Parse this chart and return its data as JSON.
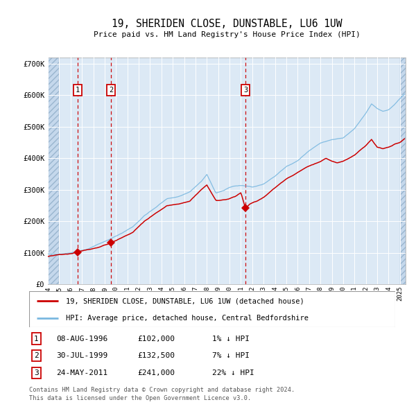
{
  "title": "19, SHERIDEN CLOSE, DUNSTABLE, LU6 1UW",
  "subtitle": "Price paid vs. HM Land Registry's House Price Index (HPI)",
  "legend_line1": "19, SHERIDEN CLOSE, DUNSTABLE, LU6 1UW (detached house)",
  "legend_line2": "HPI: Average price, detached house, Central Bedfordshire",
  "footer1": "Contains HM Land Registry data © Crown copyright and database right 2024.",
  "footer2": "This data is licensed under the Open Government Licence v3.0.",
  "transactions": [
    {
      "num": 1,
      "date": "08-AUG-1996",
      "date_val": 1996.6,
      "price": 102000,
      "label": "1% ↓ HPI"
    },
    {
      "num": 2,
      "date": "30-JUL-1999",
      "date_val": 1999.58,
      "price": 132500,
      "label": "7% ↓ HPI"
    },
    {
      "num": 3,
      "date": "24-MAY-2011",
      "date_val": 2011.4,
      "price": 241000,
      "label": "22% ↓ HPI"
    }
  ],
  "ylim": [
    0,
    720000
  ],
  "xlim_start": 1994.0,
  "xlim_end": 2025.5,
  "bg_color": "#dce9f5",
  "grid_color": "#ffffff",
  "hpi_line_color": "#7ab8e0",
  "price_line_color": "#cc0000",
  "dashed_line_color": "#cc0000",
  "marker_color": "#cc0000",
  "box_color": "#cc0000",
  "yticks": [
    0,
    100000,
    200000,
    300000,
    400000,
    500000,
    600000,
    700000
  ],
  "ytick_labels": [
    "£0",
    "£100K",
    "£200K",
    "£300K",
    "£400K",
    "£500K",
    "£600K",
    "£700K"
  ],
  "hpi_anchors": [
    [
      1994.0,
      95000
    ],
    [
      1995.0,
      97000
    ],
    [
      1996.0,
      100000
    ],
    [
      1997.5,
      112000
    ],
    [
      1998.5,
      128000
    ],
    [
      1999.5,
      143000
    ],
    [
      2000.5,
      162000
    ],
    [
      2001.5,
      183000
    ],
    [
      2002.5,
      218000
    ],
    [
      2003.5,
      243000
    ],
    [
      2004.5,
      272000
    ],
    [
      2005.5,
      278000
    ],
    [
      2006.5,
      293000
    ],
    [
      2007.5,
      325000
    ],
    [
      2008.0,
      348000
    ],
    [
      2008.8,
      288000
    ],
    [
      2009.5,
      298000
    ],
    [
      2010.0,
      308000
    ],
    [
      2010.5,
      312000
    ],
    [
      2011.0,
      312000
    ],
    [
      2012.0,
      308000
    ],
    [
      2013.0,
      318000
    ],
    [
      2014.0,
      343000
    ],
    [
      2015.0,
      373000
    ],
    [
      2016.0,
      393000
    ],
    [
      2017.0,
      423000
    ],
    [
      2018.0,
      448000
    ],
    [
      2019.0,
      458000
    ],
    [
      2020.0,
      463000
    ],
    [
      2021.0,
      493000
    ],
    [
      2022.0,
      543000
    ],
    [
      2022.5,
      573000
    ],
    [
      2023.0,
      558000
    ],
    [
      2023.5,
      548000
    ],
    [
      2024.0,
      553000
    ],
    [
      2024.5,
      568000
    ],
    [
      2025.0,
      588000
    ],
    [
      2025.4,
      603000
    ]
  ],
  "pp_anchors": [
    [
      1994.0,
      90000
    ],
    [
      1996.0,
      97000
    ],
    [
      1996.6,
      102000
    ],
    [
      1997.5,
      108000
    ],
    [
      1998.5,
      118000
    ],
    [
      1999.0,
      125000
    ],
    [
      1999.58,
      132500
    ],
    [
      2000.5,
      148000
    ],
    [
      2001.5,
      165000
    ],
    [
      2002.5,
      200000
    ],
    [
      2003.5,
      225000
    ],
    [
      2004.5,
      250000
    ],
    [
      2005.5,
      255000
    ],
    [
      2006.5,
      265000
    ],
    [
      2007.5,
      300000
    ],
    [
      2008.0,
      315000
    ],
    [
      2008.8,
      265000
    ],
    [
      2009.5,
      268000
    ],
    [
      2010.0,
      272000
    ],
    [
      2010.5,
      278000
    ],
    [
      2011.0,
      290000
    ],
    [
      2011.4,
      241000
    ],
    [
      2011.8,
      255000
    ],
    [
      2012.5,
      265000
    ],
    [
      2013.0,
      275000
    ],
    [
      2014.0,
      305000
    ],
    [
      2015.0,
      335000
    ],
    [
      2016.0,
      355000
    ],
    [
      2017.0,
      375000
    ],
    [
      2018.0,
      390000
    ],
    [
      2018.5,
      400000
    ],
    [
      2019.0,
      390000
    ],
    [
      2019.5,
      385000
    ],
    [
      2020.0,
      390000
    ],
    [
      2021.0,
      410000
    ],
    [
      2022.0,
      440000
    ],
    [
      2022.5,
      460000
    ],
    [
      2023.0,
      435000
    ],
    [
      2023.5,
      430000
    ],
    [
      2024.0,
      435000
    ],
    [
      2024.5,
      445000
    ],
    [
      2025.0,
      450000
    ],
    [
      2025.4,
      460000
    ]
  ]
}
